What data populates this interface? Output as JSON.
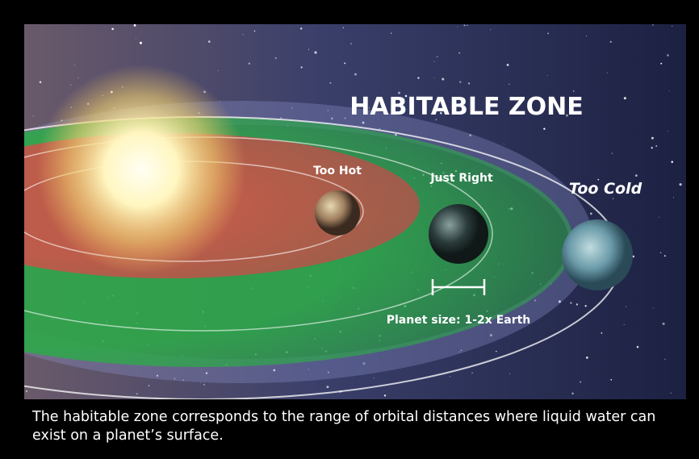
{
  "image": {
    "title": "HABITABLE ZONE",
    "labels": {
      "hot": "Too Hot",
      "right": "Just Right",
      "cold": "Too Cold",
      "size": "Planet size: 1-2x Earth"
    }
  },
  "caption": "The habitable zone corresponds to the range of orbital distances where liquid water can exist on a planet’s surface."
}
